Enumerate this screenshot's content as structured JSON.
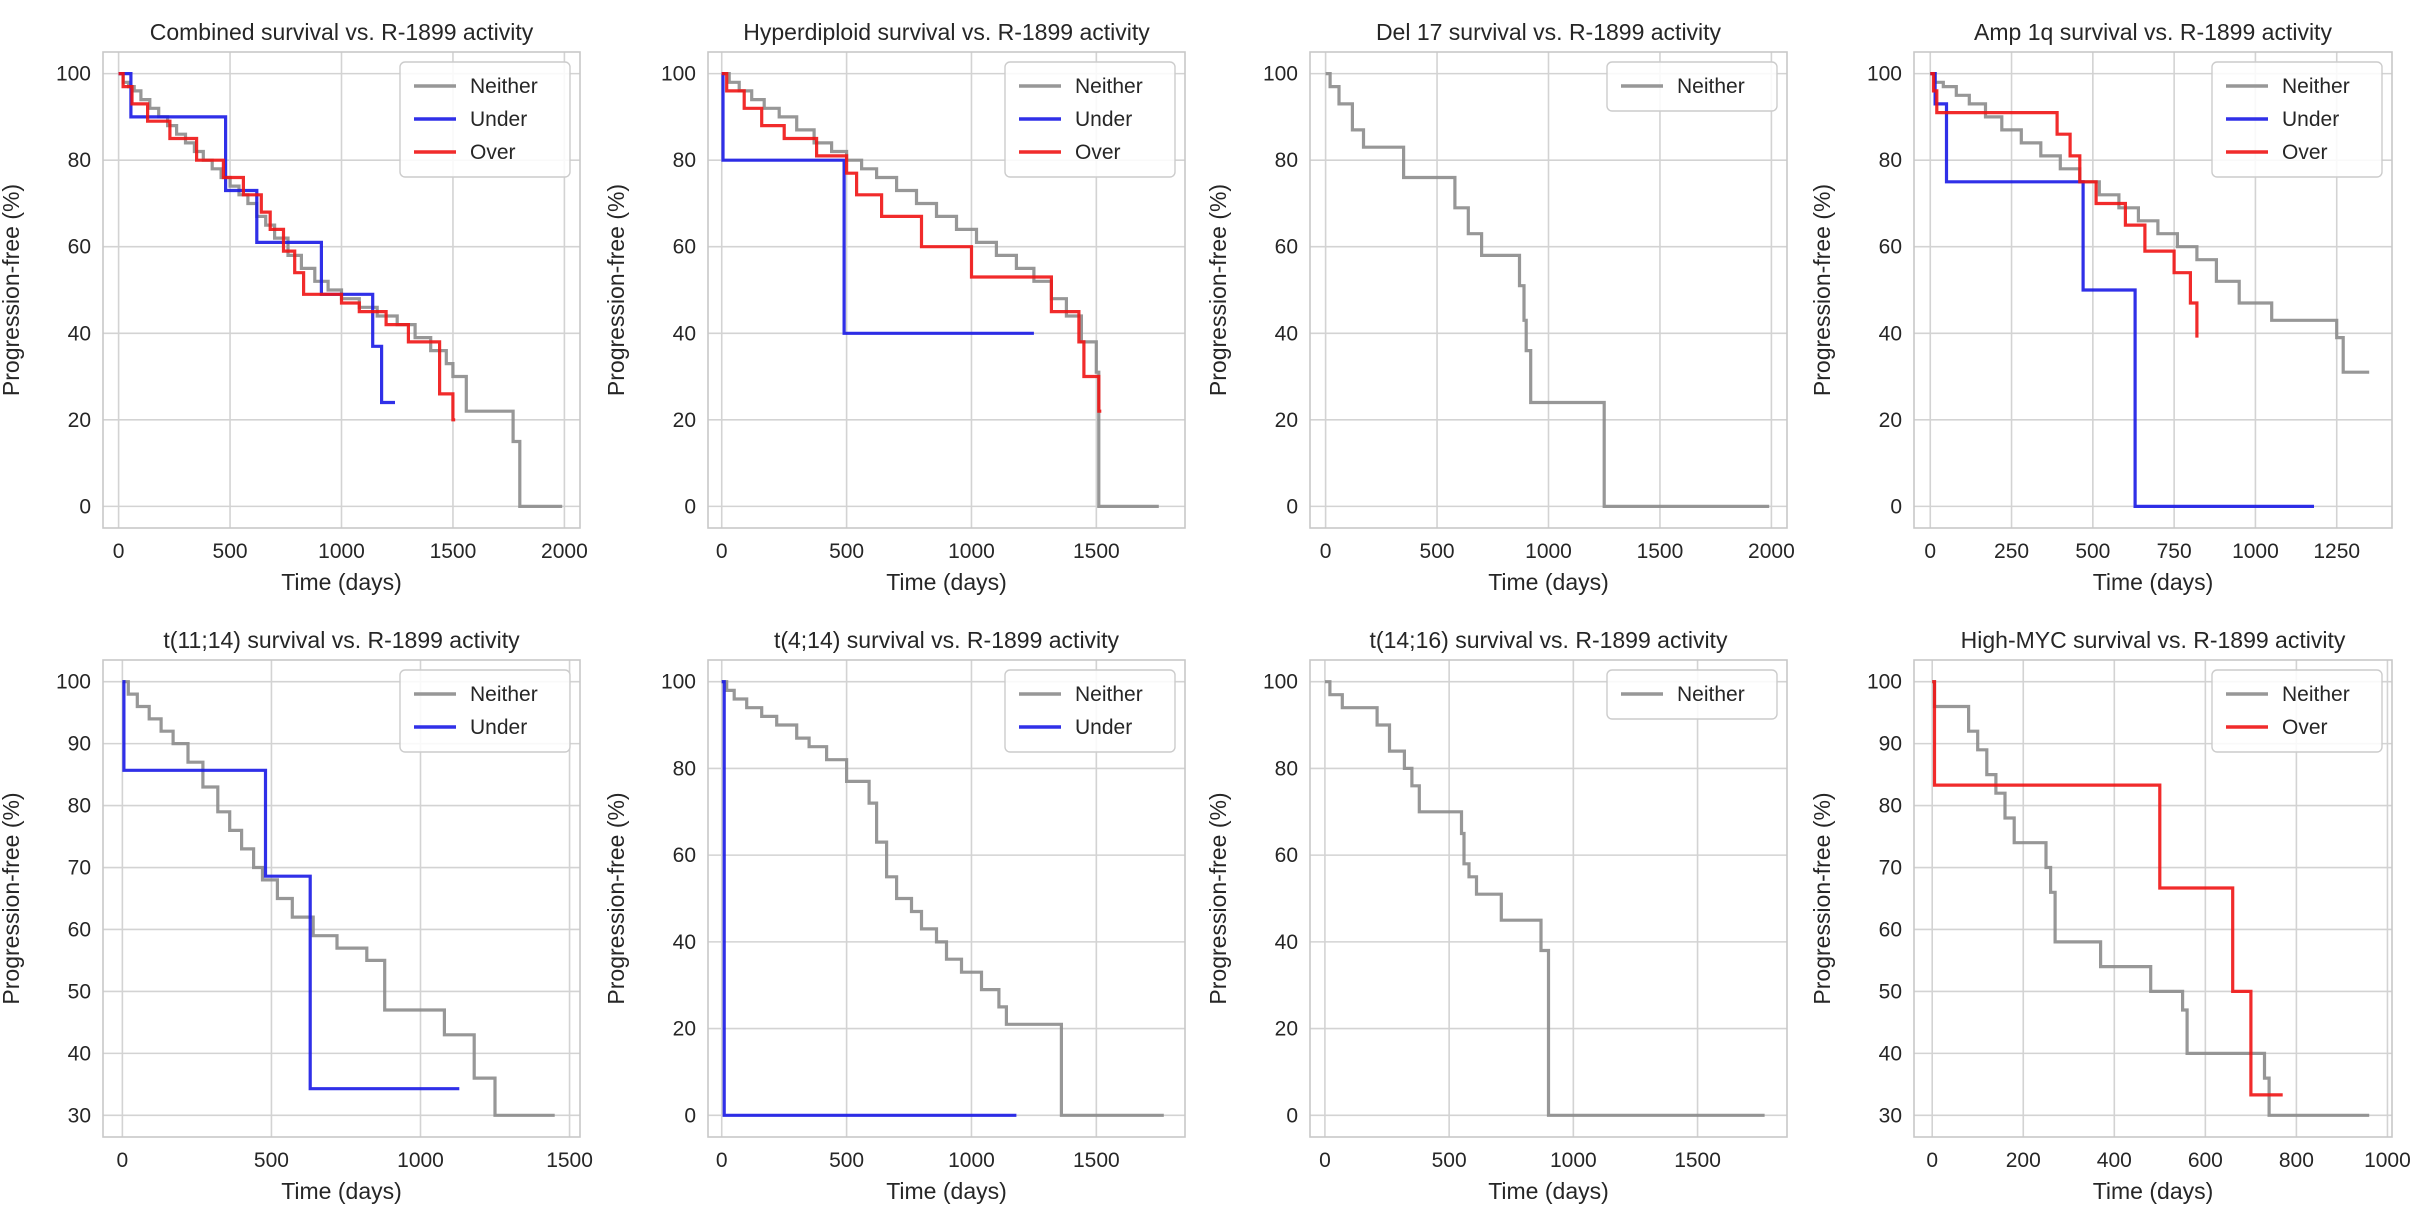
{
  "colors": {
    "neither": "#8c8c8c",
    "under": "#1a1ae6",
    "over": "#f01414",
    "grid": "#d3d3d3",
    "frame": "#c8c8c8"
  },
  "chart_data": [
    {
      "type": "line",
      "step": true,
      "title": "Combined survival vs. R-1899 activity",
      "xlabel": "Time (days)",
      "ylabel": "Progression-free (%)",
      "xlim": [
        -70,
        2070
      ],
      "ylim": [
        -5,
        105
      ],
      "xticks": [
        0,
        500,
        1000,
        1500,
        2000
      ],
      "xtick_labels": [
        "0",
        "500",
        "1000",
        "1500",
        "2000"
      ],
      "yticks": [
        0,
        20,
        40,
        60,
        80,
        100
      ],
      "ytick_labels": [
        "0",
        "20",
        "40",
        "60",
        "80",
        "100"
      ],
      "grid": true,
      "legend": "top-right",
      "series": [
        {
          "name": "Neither",
          "key": "neither",
          "x": [
            0,
            20,
            45,
            70,
            100,
            140,
            180,
            220,
            260,
            300,
            340,
            380,
            420,
            460,
            500,
            540,
            580,
            620,
            660,
            700,
            760,
            820,
            880,
            940,
            1000,
            1080,
            1160,
            1250,
            1330,
            1400,
            1470,
            1500,
            1560,
            1770,
            1800,
            1990
          ],
          "y": [
            100,
            98,
            97,
            96,
            94,
            92,
            90,
            88,
            86,
            84,
            82,
            80,
            78,
            76,
            74,
            72,
            70,
            67,
            65,
            62,
            58,
            55,
            52,
            50,
            48,
            46,
            44,
            42,
            39,
            36,
            33,
            30,
            22,
            15,
            0,
            0
          ]
        },
        {
          "name": "Under",
          "key": "under",
          "x": [
            0,
            55,
            480,
            620,
            910,
            1140,
            1180,
            1240
          ],
          "y": [
            100,
            90,
            73,
            61,
            49,
            37,
            24,
            24
          ]
        },
        {
          "name": "Over",
          "key": "over",
          "x": [
            0,
            20,
            60,
            130,
            230,
            350,
            470,
            560,
            640,
            680,
            740,
            790,
            830,
            1000,
            1080,
            1200,
            1300,
            1440,
            1500,
            1510
          ],
          "y": [
            100,
            97,
            93,
            89,
            85,
            80,
            76,
            72,
            68,
            64,
            59,
            54,
            49,
            47,
            45,
            42,
            38,
            26,
            20,
            20
          ]
        }
      ]
    },
    {
      "type": "line",
      "step": true,
      "title": "Hyperdiploid survival vs. R-1899 activity",
      "xlabel": "Time (days)",
      "ylabel": "Progression-free (%)",
      "xlim": [
        -55,
        1855
      ],
      "ylim": [
        -5,
        105
      ],
      "xticks": [
        0,
        500,
        1000,
        1500
      ],
      "xtick_labels": [
        "0",
        "500",
        "1000",
        "1500"
      ],
      "yticks": [
        0,
        20,
        40,
        60,
        80,
        100
      ],
      "ytick_labels": [
        "0",
        "20",
        "40",
        "60",
        "80",
        "100"
      ],
      "grid": true,
      "legend": "top-right",
      "series": [
        {
          "name": "Neither",
          "key": "neither",
          "x": [
            0,
            30,
            70,
            120,
            170,
            230,
            300,
            370,
            440,
            500,
            560,
            620,
            700,
            780,
            860,
            940,
            1020,
            1100,
            1180,
            1250,
            1320,
            1380,
            1440,
            1500,
            1510,
            1750
          ],
          "y": [
            100,
            98,
            96,
            94,
            92,
            90,
            87,
            84,
            82,
            80,
            78,
            76,
            73,
            70,
            67,
            64,
            61,
            58,
            55,
            52,
            48,
            44,
            38,
            31,
            0,
            0
          ]
        },
        {
          "name": "Under",
          "key": "under",
          "x": [
            0,
            5,
            490,
            1250
          ],
          "y": [
            100,
            80,
            40,
            40
          ]
        },
        {
          "name": "Over",
          "key": "over",
          "x": [
            0,
            20,
            90,
            160,
            250,
            380,
            500,
            540,
            640,
            800,
            1000,
            1320,
            1430,
            1450,
            1510,
            1520
          ],
          "y": [
            100,
            96,
            92,
            88,
            85,
            81,
            77,
            72,
            67,
            60,
            53,
            45,
            38,
            30,
            22,
            22
          ]
        }
      ]
    },
    {
      "type": "line",
      "step": true,
      "title": "Del 17 survival vs. R-1899 activity",
      "xlabel": "Time (days)",
      "ylabel": "Progression-free (%)",
      "xlim": [
        -70,
        2070
      ],
      "ylim": [
        -5,
        105
      ],
      "xticks": [
        0,
        500,
        1000,
        1500,
        2000
      ],
      "xtick_labels": [
        "0",
        "500",
        "1000",
        "1500",
        "2000"
      ],
      "yticks": [
        0,
        20,
        40,
        60,
        80,
        100
      ],
      "ytick_labels": [
        "0",
        "20",
        "40",
        "60",
        "80",
        "100"
      ],
      "grid": true,
      "legend": "top-right",
      "series": [
        {
          "name": "Neither",
          "key": "neither",
          "x": [
            0,
            20,
            60,
            120,
            170,
            240,
            350,
            580,
            640,
            700,
            870,
            890,
            900,
            920,
            1250,
            1990
          ],
          "y": [
            100,
            97,
            93,
            87,
            83,
            83,
            76,
            69,
            63,
            58,
            51,
            43,
            36,
            24,
            0,
            0
          ]
        }
      ]
    },
    {
      "type": "line",
      "step": true,
      "title": "Amp 1q survival vs. R-1899 activity",
      "xlabel": "Time (days)",
      "ylabel": "Progression-free (%)",
      "xlim": [
        -50,
        1420
      ],
      "ylim": [
        -5,
        105
      ],
      "xticks": [
        0,
        250,
        500,
        750,
        1000,
        1250
      ],
      "xtick_labels": [
        "0",
        "250",
        "500",
        "750",
        "1000",
        "1250"
      ],
      "yticks": [
        0,
        20,
        40,
        60,
        80,
        100
      ],
      "ytick_labels": [
        "0",
        "20",
        "40",
        "60",
        "80",
        "100"
      ],
      "grid": true,
      "legend": "top-right",
      "series": [
        {
          "name": "Neither",
          "key": "neither",
          "x": [
            0,
            15,
            40,
            80,
            120,
            170,
            220,
            280,
            340,
            400,
            460,
            520,
            580,
            640,
            700,
            760,
            820,
            880,
            950,
            1050,
            1250,
            1270,
            1350
          ],
          "y": [
            100,
            98,
            97,
            95,
            93,
            90,
            87,
            84,
            81,
            78,
            75,
            72,
            69,
            66,
            63,
            60,
            57,
            52,
            47,
            43,
            39,
            31,
            31
          ]
        },
        {
          "name": "Under",
          "key": "under",
          "x": [
            0,
            15,
            50,
            470,
            630,
            1180
          ],
          "y": [
            100,
            93,
            75,
            50,
            0,
            0
          ]
        },
        {
          "name": "Over",
          "key": "over",
          "x": [
            0,
            10,
            20,
            340,
            390,
            430,
            460,
            510,
            600,
            660,
            750,
            800,
            820
          ],
          "y": [
            100,
            96,
            91,
            91,
            86,
            81,
            75,
            70,
            65,
            59,
            54,
            47,
            39
          ]
        }
      ]
    },
    {
      "type": "line",
      "step": true,
      "title": "t(11;14) survival vs. R-1899 activity",
      "xlabel": "Time (days)",
      "ylabel": "Progression-free (%)",
      "xlim": [
        -65,
        1535
      ],
      "ylim": [
        26.5,
        103.5
      ],
      "xticks": [
        0,
        500,
        1000,
        1500
      ],
      "xtick_labels": [
        "0",
        "500",
        "1000",
        "1500"
      ],
      "yticks": [
        30,
        40,
        50,
        60,
        70,
        80,
        90,
        100
      ],
      "ytick_labels": [
        "30",
        "40",
        "50",
        "60",
        "70",
        "80",
        "90",
        "100"
      ],
      "grid": true,
      "legend": "top-right",
      "series": [
        {
          "name": "Neither",
          "key": "neither",
          "x": [
            0,
            20,
            50,
            90,
            130,
            170,
            220,
            270,
            320,
            360,
            400,
            440,
            470,
            520,
            570,
            640,
            720,
            820,
            880,
            1080,
            1180,
            1250,
            1450
          ],
          "y": [
            100,
            98,
            96,
            94,
            92,
            90,
            87,
            83,
            79,
            76,
            73,
            70,
            68,
            65,
            62,
            59,
            57,
            55,
            47,
            43,
            36,
            30,
            30
          ]
        },
        {
          "name": "Under",
          "key": "under",
          "x": [
            0,
            5,
            480,
            630,
            1130
          ],
          "y": [
            100,
            85.7,
            68.6,
            34.3,
            34.3
          ]
        }
      ]
    },
    {
      "type": "line",
      "step": true,
      "title": "t(4;14) survival vs. R-1899 activity",
      "xlabel": "Time (days)",
      "ylabel": "Progression-free (%)",
      "xlim": [
        -55,
        1855
      ],
      "ylim": [
        -5,
        105
      ],
      "xticks": [
        0,
        500,
        1000,
        1500
      ],
      "xtick_labels": [
        "0",
        "500",
        "1000",
        "1500"
      ],
      "yticks": [
        0,
        20,
        40,
        60,
        80,
        100
      ],
      "ytick_labels": [
        "0",
        "20",
        "40",
        "60",
        "80",
        "100"
      ],
      "grid": true,
      "legend": "top-right",
      "series": [
        {
          "name": "Neither",
          "key": "neither",
          "x": [
            0,
            20,
            50,
            100,
            160,
            220,
            300,
            350,
            420,
            500,
            590,
            620,
            660,
            700,
            760,
            800,
            860,
            900,
            960,
            1040,
            1110,
            1140,
            1350,
            1360,
            1770
          ],
          "y": [
            100,
            98,
            96,
            94,
            92,
            90,
            87,
            85,
            82,
            77,
            72,
            63,
            55,
            50,
            47,
            43,
            40,
            36,
            33,
            29,
            25,
            21,
            21,
            0,
            0
          ]
        },
        {
          "name": "Under",
          "key": "under",
          "x": [
            0,
            10,
            1180
          ],
          "y": [
            100,
            0,
            0
          ]
        }
      ]
    },
    {
      "type": "line",
      "step": true,
      "title": "t(14;16) survival vs. R-1899 activity",
      "xlabel": "Time (days)",
      "ylabel": "Progression-free (%)",
      "xlim": [
        -60,
        1860
      ],
      "ylim": [
        -5,
        105
      ],
      "xticks": [
        0,
        500,
        1000,
        1500
      ],
      "xtick_labels": [
        "0",
        "500",
        "1000",
        "1500"
      ],
      "yticks": [
        0,
        20,
        40,
        60,
        80,
        100
      ],
      "ytick_labels": [
        "0",
        "20",
        "40",
        "60",
        "80",
        "100"
      ],
      "grid": true,
      "legend": "top-right",
      "series": [
        {
          "name": "Neither",
          "key": "neither",
          "x": [
            0,
            20,
            70,
            210,
            260,
            320,
            350,
            380,
            550,
            560,
            580,
            610,
            710,
            870,
            900,
            1770
          ],
          "y": [
            100,
            97,
            94,
            90,
            84,
            80,
            76,
            70,
            65,
            58,
            55,
            51,
            45,
            38,
            0,
            0
          ]
        }
      ]
    },
    {
      "type": "line",
      "step": true,
      "title": "High-MYC survival vs. R-1899 activity",
      "xlabel": "Time (days)",
      "ylabel": "Progression-free (%)",
      "xlim": [
        -40,
        1010
      ],
      "ylim": [
        26.5,
        103.5
      ],
      "xticks": [
        0,
        200,
        400,
        600,
        800,
        1000
      ],
      "xtick_labels": [
        "0",
        "200",
        "400",
        "600",
        "800",
        "1000"
      ],
      "yticks": [
        30,
        40,
        50,
        60,
        70,
        80,
        90,
        100
      ],
      "ytick_labels": [
        "30",
        "40",
        "50",
        "60",
        "70",
        "80",
        "90",
        "100"
      ],
      "grid": true,
      "legend": "top-right",
      "series": [
        {
          "name": "Neither",
          "key": "neither",
          "x": [
            0,
            5,
            80,
            100,
            120,
            140,
            160,
            180,
            250,
            260,
            270,
            370,
            480,
            550,
            560,
            720,
            730,
            740,
            960
          ],
          "y": [
            100,
            96,
            92,
            89,
            85,
            82,
            78,
            74,
            70,
            66,
            58,
            54,
            50,
            47,
            40,
            40,
            36,
            30,
            30
          ]
        },
        {
          "name": "Over",
          "key": "over",
          "x": [
            0,
            5,
            500,
            660,
            700,
            720,
            770
          ],
          "y": [
            100,
            83.3,
            66.7,
            50,
            33.3,
            33.3,
            33.3
          ]
        }
      ]
    }
  ]
}
